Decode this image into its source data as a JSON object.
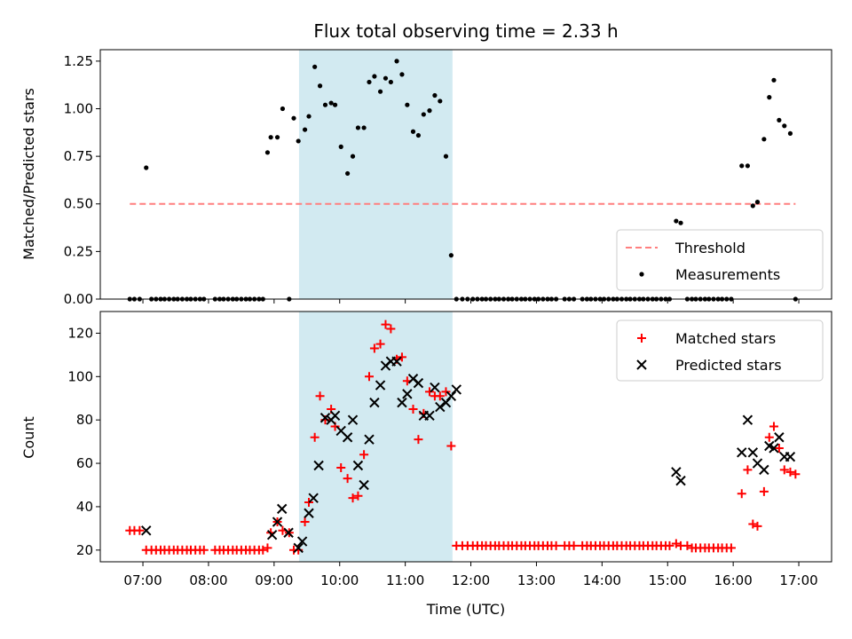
{
  "chart_data": {
    "title": "Flux total observing time = 2.33 h",
    "xlabel": "Time (UTC)",
    "x_ticks": [
      "07:00",
      "08:00",
      "09:00",
      "10:00",
      "11:00",
      "12:00",
      "13:00",
      "14:00",
      "15:00",
      "16:00",
      "17:00"
    ],
    "xlim": [
      6.35,
      17.5
    ],
    "highlight_span": {
      "start": 9.38,
      "end": 11.72,
      "color": "#add8e6"
    },
    "panels": [
      {
        "type": "scatter",
        "ylabel": "Matched/Predicted stars",
        "ylim": [
          0,
          1.31
        ],
        "y_ticks": [
          "0.00",
          "0.25",
          "0.50",
          "0.75",
          "1.00",
          "1.25"
        ],
        "legend": {
          "position": "lower-right",
          "entries": [
            "Threshold",
            "Measurements"
          ]
        },
        "series": [
          {
            "name": "Threshold",
            "style": "dashed-line",
            "color": "#ff7f7f",
            "x": [
              6.8,
              16.95
            ],
            "y": [
              0.5,
              0.5
            ]
          },
          {
            "name": "Measurements",
            "style": "dot",
            "color": "#000000",
            "x": [
              6.8,
              6.87,
              6.95,
              7.05,
              7.13,
              7.2,
              7.27,
              7.33,
              7.4,
              7.47,
              7.53,
              7.6,
              7.67,
              7.73,
              7.8,
              7.87,
              7.93,
              8.1,
              8.17,
              8.23,
              8.3,
              8.37,
              8.43,
              8.5,
              8.57,
              8.63,
              8.7,
              8.77,
              8.83,
              8.9,
              8.95,
              9.05,
              9.13,
              9.23,
              9.3,
              9.37,
              9.47,
              9.53,
              9.62,
              9.7,
              9.78,
              9.87,
              9.93,
              10.02,
              10.12,
              10.2,
              10.28,
              10.37,
              10.45,
              10.53,
              10.62,
              10.7,
              10.78,
              10.87,
              10.95,
              11.03,
              11.12,
              11.2,
              11.28,
              11.37,
              11.45,
              11.53,
              11.62,
              11.7,
              11.78,
              11.87,
              11.95,
              12.03,
              12.1,
              12.17,
              12.23,
              12.3,
              12.37,
              12.43,
              12.5,
              12.57,
              12.63,
              12.7,
              12.77,
              12.83,
              12.9,
              12.97,
              13.03,
              13.1,
              13.17,
              13.23,
              13.3,
              13.43,
              13.5,
              13.57,
              13.7,
              13.77,
              13.83,
              13.9,
              13.97,
              14.03,
              14.1,
              14.17,
              14.23,
              14.3,
              14.37,
              14.43,
              14.5,
              14.57,
              14.63,
              14.7,
              14.77,
              14.83,
              14.9,
              14.97,
              15.03,
              15.13,
              15.2,
              15.3,
              15.37,
              15.43,
              15.5,
              15.57,
              15.63,
              15.7,
              15.77,
              15.83,
              15.9,
              15.97,
              16.13,
              16.22,
              16.3,
              16.37,
              16.47,
              16.55,
              16.62,
              16.7,
              16.78,
              16.87,
              16.95
            ],
            "y": [
              0,
              0,
              0,
              0.69,
              0,
              0,
              0,
              0,
              0,
              0,
              0,
              0,
              0,
              0,
              0,
              0,
              0,
              0,
              0,
              0,
              0,
              0,
              0,
              0,
              0,
              0,
              0,
              0,
              0,
              0.77,
              0.85,
              0.85,
              1.0,
              0,
              0.95,
              0.83,
              0.89,
              0.96,
              1.22,
              1.12,
              1.02,
              1.03,
              1.02,
              0.8,
              0.66,
              0.75,
              0.9,
              0.9,
              1.14,
              1.17,
              1.09,
              1.16,
              1.14,
              1.25,
              1.18,
              1.02,
              0.88,
              0.86,
              0.97,
              0.99,
              1.07,
              1.04,
              0.75,
              0.23,
              0,
              0,
              0,
              0,
              0,
              0,
              0,
              0,
              0,
              0,
              0,
              0,
              0,
              0,
              0,
              0,
              0,
              0,
              0,
              0,
              0,
              0,
              0,
              0,
              0,
              0,
              0,
              0,
              0,
              0,
              0,
              0,
              0,
              0,
              0,
              0,
              0,
              0,
              0,
              0,
              0,
              0,
              0,
              0,
              0,
              0,
              0,
              0.41,
              0.4,
              0,
              0,
              0,
              0,
              0,
              0,
              0,
              0,
              0,
              0,
              0,
              0.7,
              0.7,
              0.49,
              0.51,
              0.84,
              1.06,
              1.15,
              0.94,
              0.91,
              0.87,
              0
            ]
          }
        ]
      },
      {
        "type": "scatter",
        "ylabel": "Count",
        "ylim": [
          14.6,
          130
        ],
        "y_ticks": [
          "20",
          "40",
          "60",
          "80",
          "100",
          "120"
        ],
        "legend": {
          "position": "top-right",
          "entries": [
            "Matched stars",
            "Predicted stars"
          ]
        },
        "series": [
          {
            "name": "Matched stars",
            "marker": "plus",
            "color": "#ff0000",
            "x": [
              6.8,
              6.87,
              6.95,
              7.05,
              7.13,
              7.2,
              7.27,
              7.33,
              7.4,
              7.47,
              7.53,
              7.6,
              7.67,
              7.73,
              7.8,
              7.87,
              7.93,
              8.1,
              8.17,
              8.23,
              8.3,
              8.37,
              8.43,
              8.5,
              8.57,
              8.63,
              8.7,
              8.77,
              8.83,
              8.9,
              8.95,
              9.05,
              9.13,
              9.23,
              9.3,
              9.37,
              9.47,
              9.53,
              9.62,
              9.7,
              9.78,
              9.87,
              9.93,
              10.02,
              10.12,
              10.2,
              10.28,
              10.37,
              10.45,
              10.53,
              10.62,
              10.7,
              10.78,
              10.87,
              10.95,
              11.03,
              11.12,
              11.2,
              11.28,
              11.37,
              11.45,
              11.53,
              11.62,
              11.7,
              11.78,
              11.87,
              11.95,
              12.03,
              12.1,
              12.17,
              12.23,
              12.3,
              12.37,
              12.43,
              12.5,
              12.57,
              12.63,
              12.7,
              12.77,
              12.83,
              12.9,
              12.97,
              13.03,
              13.1,
              13.17,
              13.23,
              13.3,
              13.43,
              13.5,
              13.57,
              13.7,
              13.77,
              13.83,
              13.9,
              13.97,
              14.03,
              14.1,
              14.17,
              14.23,
              14.3,
              14.37,
              14.43,
              14.5,
              14.57,
              14.63,
              14.7,
              14.77,
              14.83,
              14.9,
              14.97,
              15.03,
              15.13,
              15.2,
              15.3,
              15.37,
              15.43,
              15.5,
              15.57,
              15.63,
              15.7,
              15.77,
              15.83,
              15.9,
              15.97,
              16.13,
              16.22,
              16.3,
              16.37,
              16.47,
              16.55,
              16.62,
              16.7,
              16.78,
              16.87,
              16.95
            ],
            "y": [
              29,
              29,
              29,
              20,
              20,
              20,
              20,
              20,
              20,
              20,
              20,
              20,
              20,
              20,
              20,
              20,
              20,
              20,
              20,
              20,
              20,
              20,
              20,
              20,
              20,
              20,
              20,
              20,
              20,
              21,
              28,
              33,
              29,
              28,
              20,
              20,
              33,
              42,
              72,
              91,
              80,
              85,
              77,
              58,
              53,
              44,
              45,
              64,
              100,
              113,
              115,
              124,
              122,
              108,
              109,
              98,
              85,
              71,
              83,
              93,
              91,
              91,
              93,
              68,
              22,
              22,
              22,
              22,
              22,
              22,
              22,
              22,
              22,
              22,
              22,
              22,
              22,
              22,
              22,
              22,
              22,
              22,
              22,
              22,
              22,
              22,
              22,
              22,
              22,
              22,
              22,
              22,
              22,
              22,
              22,
              22,
              22,
              22,
              22,
              22,
              22,
              22,
              22,
              22,
              22,
              22,
              22,
              22,
              22,
              22,
              22,
              23,
              22,
              22,
              21,
              21,
              21,
              21,
              21,
              21,
              21,
              21,
              21,
              21,
              46,
              57,
              32,
              31,
              47,
              72,
              77,
              67,
              57,
              56,
              55
            ]
          },
          {
            "name": "Predicted stars",
            "marker": "x",
            "color": "#000000",
            "x": [
              7.05,
              8.97,
              9.05,
              9.12,
              9.22,
              9.37,
              9.43,
              9.53,
              9.6,
              9.68,
              9.78,
              9.87,
              9.93,
              10.02,
              10.12,
              10.2,
              10.28,
              10.37,
              10.45,
              10.53,
              10.62,
              10.7,
              10.78,
              10.87,
              10.95,
              11.03,
              11.12,
              11.2,
              11.28,
              11.37,
              11.45,
              11.53,
              11.62,
              11.7,
              11.78,
              15.13,
              15.2,
              16.13,
              16.22,
              16.3,
              16.37,
              16.47,
              16.55,
              16.62,
              16.7,
              16.78,
              16.87
            ],
            "y": [
              29,
              27,
              33,
              39,
              28,
              21,
              24,
              37,
              44,
              59,
              81,
              80,
              82,
              75,
              72,
              80,
              59,
              50,
              71,
              88,
              96,
              105,
              107,
              107,
              88,
              92,
              99,
              97,
              82,
              82,
              95,
              86,
              88,
              91,
              94,
              56,
              52,
              65,
              80,
              65,
              60,
              57,
              68,
              67,
              72,
              63,
              63
            ]
          }
        ]
      }
    ]
  }
}
